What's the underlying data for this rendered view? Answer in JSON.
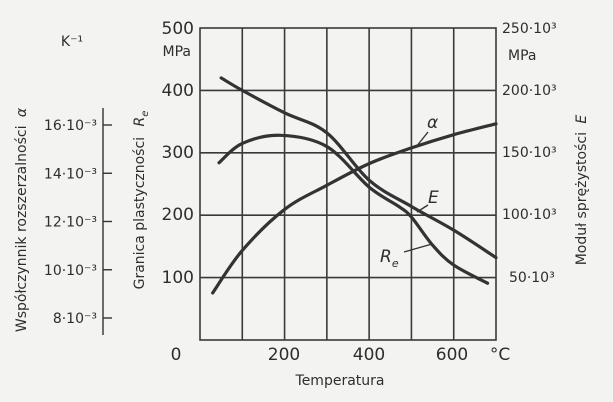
{
  "chart_data": {
    "type": "line",
    "title": "",
    "xlabel": "Temperatura",
    "x_unit": "°C",
    "xlim": [
      0,
      700
    ],
    "x_ticks": [
      "0",
      "200",
      "400",
      "600"
    ],
    "grid": true,
    "axes": {
      "left_Re": {
        "label": "Granica plastyczności",
        "symbol": "R",
        "symbol_sub": "e",
        "unit": "MPa",
        "range": [
          0,
          500
        ],
        "ticks": [
          "500",
          "400",
          "300",
          "200",
          "100"
        ]
      },
      "right_E": {
        "label": "Moduł sprężystości",
        "symbol": "E",
        "unit": "MPa",
        "range": [
          0,
          250000
        ],
        "ticks": [
          "250·10³",
          "200·10³",
          "150·10³",
          "100·10³",
          "50·10³"
        ]
      },
      "far_left_alpha": {
        "label": "Współczynnik rozszerzalności",
        "symbol": "α",
        "unit": "K⁻¹",
        "range": [
          0.008,
          0.016
        ],
        "ticks": [
          "16·10⁻³",
          "14·10⁻³",
          "12·10⁻³",
          "10·10⁻³",
          "8·10⁻³"
        ]
      }
    },
    "series": [
      {
        "name": "E",
        "label": "E",
        "axis": "right_E",
        "x": [
          50,
          100,
          200,
          300,
          400,
          500,
          600,
          700
        ],
        "values": [
          210000,
          200000,
          182000,
          166000,
          128000,
          107000,
          88000,
          66000
        ]
      },
      {
        "name": "Re",
        "label": "R",
        "label_sub": "e",
        "axis": "left_Re",
        "x": [
          45,
          100,
          190,
          300,
          400,
          470,
          500,
          550,
          600,
          680
        ],
        "values": [
          284,
          315,
          328,
          310,
          245,
          214,
          197,
          152,
          120,
          91
        ]
      },
      {
        "name": "alpha",
        "label": "α",
        "axis": "far_left_alpha",
        "x": [
          30,
          100,
          200,
          300,
          400,
          500,
          600,
          700
        ],
        "values": [
          0.00904,
          0.0108,
          0.0125,
          0.0135,
          0.0144,
          0.01505,
          0.0156,
          0.01605
        ]
      }
    ]
  }
}
